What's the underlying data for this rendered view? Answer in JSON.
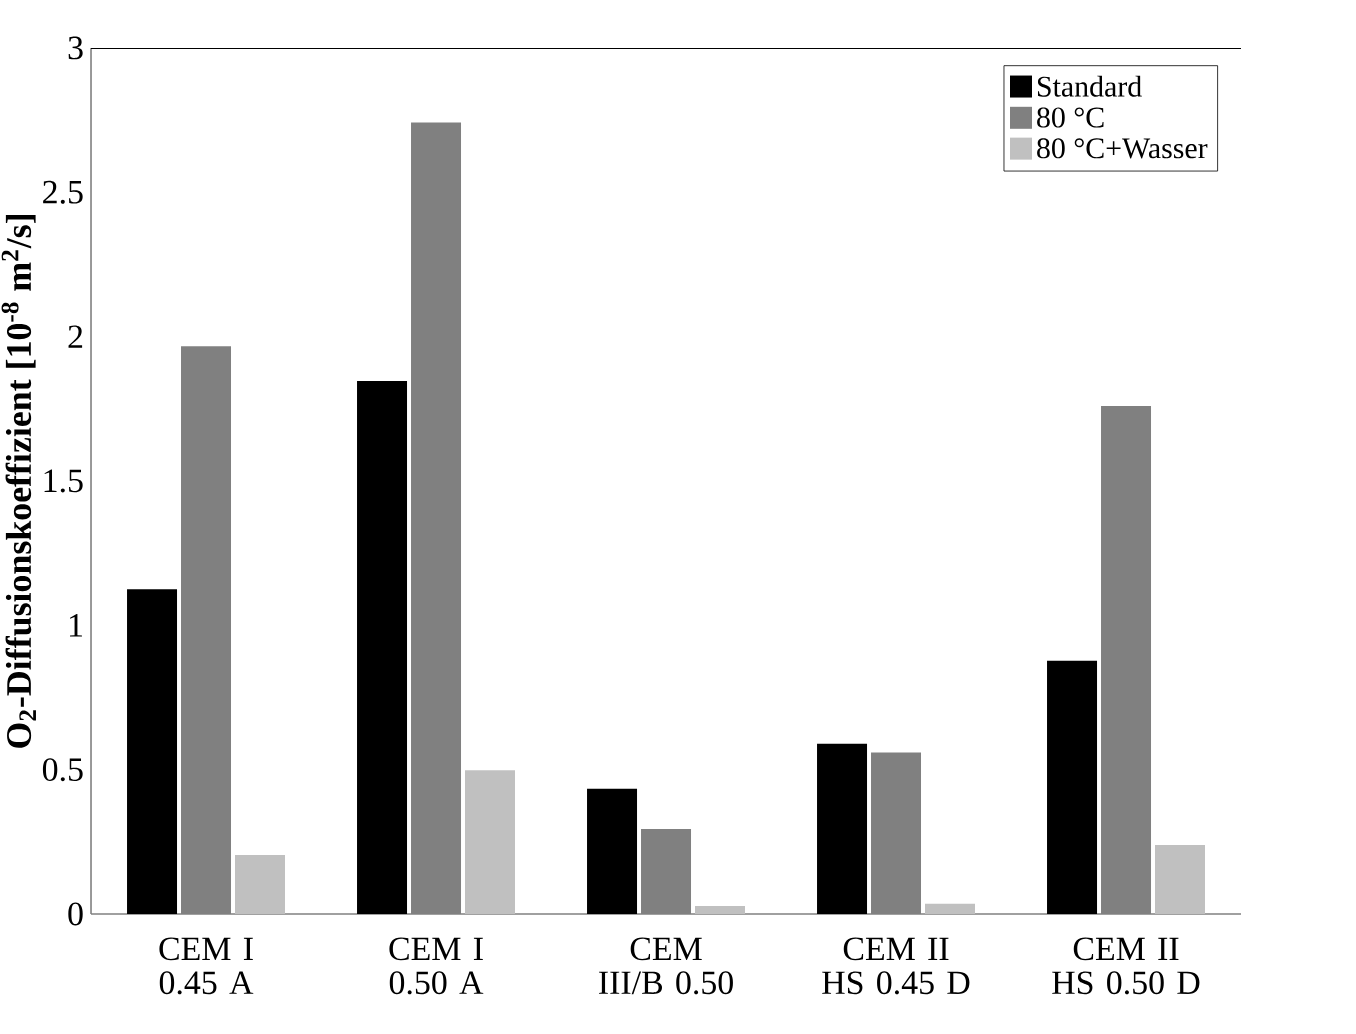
{
  "chart_data": {
    "type": "bar",
    "ylabel": "**O$_{2}$-Diffusionskoeffizient [10$^{-8}$ m$^{2}$/s]**",
    "categories": [
      "CEM I 0.45 A",
      "CEM I 0.50 A",
      "CEM III/B 0.50",
      "CEM II HS 0.45 D",
      "CEM II HS 0.50 D"
    ],
    "series": [
      {
        "name": "Standard",
        "color": "#000000",
        "values": [
          1.125,
          1.846,
          0.434,
          0.59,
          0.877
        ]
      },
      {
        "name": "80 °C",
        "color": "#808080",
        "values": [
          1.967,
          2.742,
          0.294,
          0.559,
          1.76
        ]
      },
      {
        "name": "80 °C+Wasser",
        "color": "#c0c0c0",
        "values": [
          0.204,
          0.498,
          0.028,
          0.035,
          0.239
        ]
      }
    ],
    "ylim": [
      0,
      3
    ],
    "yticks": [
      0,
      0.5,
      1,
      1.5,
      2,
      2.5,
      3
    ],
    "grid": false,
    "legend": "top right"
  }
}
